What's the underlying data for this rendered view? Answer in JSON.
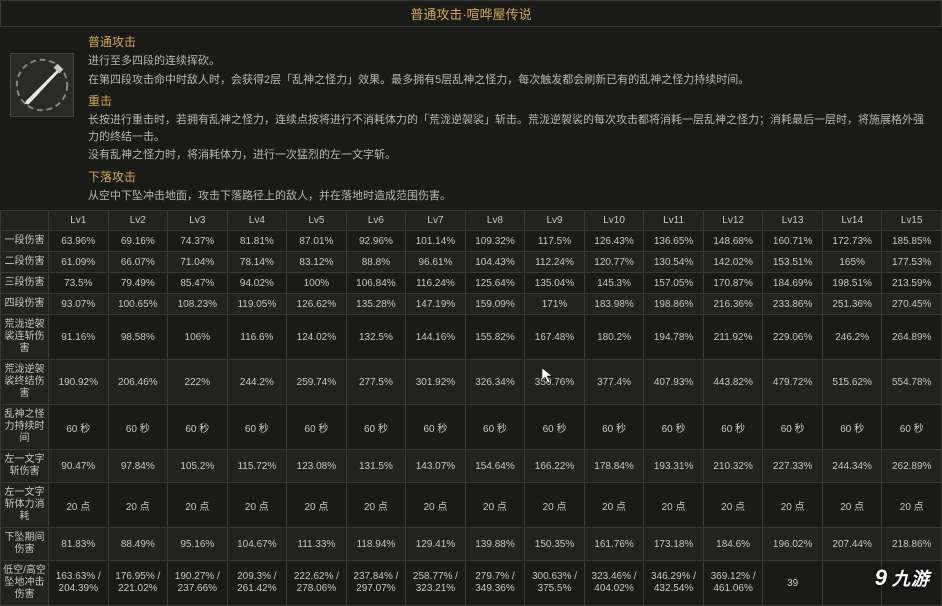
{
  "title": "普通攻击·喧哗屋传说",
  "sections": [
    {
      "heading": "普通攻击",
      "lines": [
        "进行至多四段的连续挥砍。",
        "在第四段攻击命中时敌人时，会获得2层「乱神之怪力」效果。最多拥有5层乱神之怪力，每次触发都会刷新已有的乱神之怪力持续时间。"
      ]
    },
    {
      "heading": "重击",
      "lines": [
        "长按进行重击时，若拥有乱神之怪力，连续点按将进行不消耗体力的「荒泷逆袈裟」斩击。荒泷逆袈裟的每次攻击都将消耗一层乱神之怪力；消耗最后一层时，将施展格外强力的终结一击。",
        "没有乱神之怪力时，将消耗体力，进行一次猛烈的左一文字斩。"
      ]
    },
    {
      "heading": "下落攻击",
      "lines": [
        "从空中下坠冲击地面，攻击下落路径上的敌人，并在落地时造成范围伤害。"
      ]
    }
  ],
  "levels": [
    "Lv1",
    "Lv2",
    "Lv3",
    "Lv4",
    "Lv5",
    "Lv6",
    "Lv7",
    "Lv8",
    "Lv9",
    "Lv10",
    "Lv11",
    "Lv12",
    "Lv13",
    "Lv14",
    "Lv15"
  ],
  "rows": [
    {
      "label": "一段伤害",
      "vals": [
        "63.96%",
        "69.16%",
        "74.37%",
        "81.81%",
        "87.01%",
        "92.96%",
        "101.14%",
        "109.32%",
        "117.5%",
        "126.43%",
        "136.65%",
        "148.68%",
        "160.71%",
        "172.73%",
        "185.85%"
      ]
    },
    {
      "label": "二段伤害",
      "vals": [
        "61.09%",
        "66.07%",
        "71.04%",
        "78.14%",
        "83.12%",
        "88.8%",
        "96.61%",
        "104.43%",
        "112.24%",
        "120.77%",
        "130.54%",
        "142.02%",
        "153.51%",
        "165%",
        "177.53%"
      ]
    },
    {
      "label": "三段伤害",
      "vals": [
        "73.5%",
        "79.49%",
        "85.47%",
        "94.02%",
        "100%",
        "106.84%",
        "116.24%",
        "125.64%",
        "135.04%",
        "145.3%",
        "157.05%",
        "170.87%",
        "184.69%",
        "198.51%",
        "213.59%"
      ]
    },
    {
      "label": "四段伤害",
      "vals": [
        "93.07%",
        "100.65%",
        "108.23%",
        "119.05%",
        "126.62%",
        "135.28%",
        "147.19%",
        "159.09%",
        "171%",
        "183.98%",
        "198.86%",
        "216.36%",
        "233.86%",
        "251.36%",
        "270.45%"
      ]
    },
    {
      "label": "荒泷逆袈裟连斩伤害",
      "vals": [
        "91.16%",
        "98.58%",
        "106%",
        "116.6%",
        "124.02%",
        "132.5%",
        "144.16%",
        "155.82%",
        "167.48%",
        "180.2%",
        "194.78%",
        "211.92%",
        "229.06%",
        "246.2%",
        "264.89%"
      ]
    },
    {
      "label": "荒泷逆袈裟终结伤害",
      "vals": [
        "190.92%",
        "206.46%",
        "222%",
        "244.2%",
        "259.74%",
        "277.5%",
        "301.92%",
        "326.34%",
        "350.76%",
        "377.4%",
        "407.93%",
        "443.82%",
        "479.72%",
        "515.62%",
        "554.78%"
      ]
    },
    {
      "label": "乱神之怪力持续时间",
      "vals": [
        "60 秒",
        "60 秒",
        "60 秒",
        "60 秒",
        "60 秒",
        "60 秒",
        "60 秒",
        "60 秒",
        "60 秒",
        "60 秒",
        "60 秒",
        "60 秒",
        "60 秒",
        "60 秒",
        "60 秒"
      ]
    },
    {
      "label": "左一文字斩伤害",
      "vals": [
        "90.47%",
        "97.84%",
        "105.2%",
        "115.72%",
        "123.08%",
        "131.5%",
        "143.07%",
        "154.64%",
        "166.22%",
        "178.84%",
        "193.31%",
        "210.32%",
        "227.33%",
        "244.34%",
        "262.89%"
      ]
    },
    {
      "label": "左一文字斩体力消耗",
      "vals": [
        "20 点",
        "20 点",
        "20 点",
        "20 点",
        "20 点",
        "20 点",
        "20 点",
        "20 点",
        "20 点",
        "20 点",
        "20 点",
        "20 点",
        "20 点",
        "20 点",
        "20 点"
      ]
    },
    {
      "label": "下坠期间伤害",
      "vals": [
        "81.83%",
        "88.49%",
        "95.16%",
        "104.67%",
        "111.33%",
        "118.94%",
        "129.41%",
        "139.88%",
        "150.35%",
        "161.76%",
        "173.18%",
        "184.6%",
        "196.02%",
        "207.44%",
        "218.86%"
      ]
    },
    {
      "label": "低空/高空坠地冲击伤害",
      "vals": [
        "163.63% / 204.39%",
        "176.95% / 221.02%",
        "190.27% / 237.66%",
        "209.3% / 261.42%",
        "222.62% / 278.06%",
        "237.84% / 297.07%",
        "258.77% / 323.21%",
        "279.7% / 349.36%",
        "300.63% / 375.5%",
        "323.46% / 404.02%",
        "346.29% / 432.54%",
        "369.12% / 461.06%",
        "39",
        "",
        ""
      ]
    }
  ],
  "watermark": "九游",
  "colors": {
    "accent": "#d4a84b",
    "border": "#3a3830",
    "bg": "#1a1a18",
    "bg_alt": "#22221e",
    "text": "#c8c8c0"
  },
  "icon_name": "sword-icon"
}
